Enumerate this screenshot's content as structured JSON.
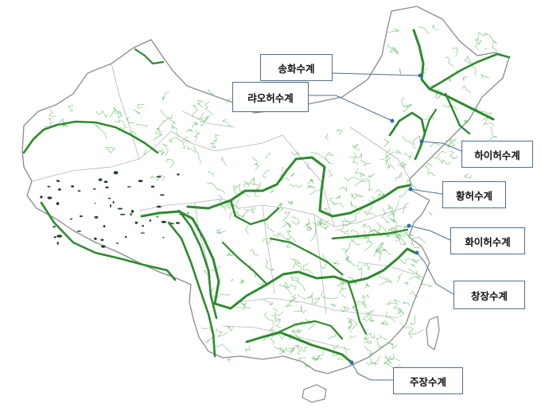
{
  "map": {
    "colors": {
      "land_fill": "#ffffff",
      "border": "#8a8a8a",
      "river_major": "#2d8a2d",
      "river_minor": "#6fbf6f",
      "lake": "#1f3f2a",
      "leader": "#4f6f8f"
    },
    "labels": {
      "songhua": "송화수계",
      "liaohe": "랴오허수계",
      "haihe": "하이허수계",
      "huanghe": "황허수계",
      "huaihe": "화이허수계",
      "changjiang": "창장수계",
      "zhujiang": "주장수계"
    }
  }
}
